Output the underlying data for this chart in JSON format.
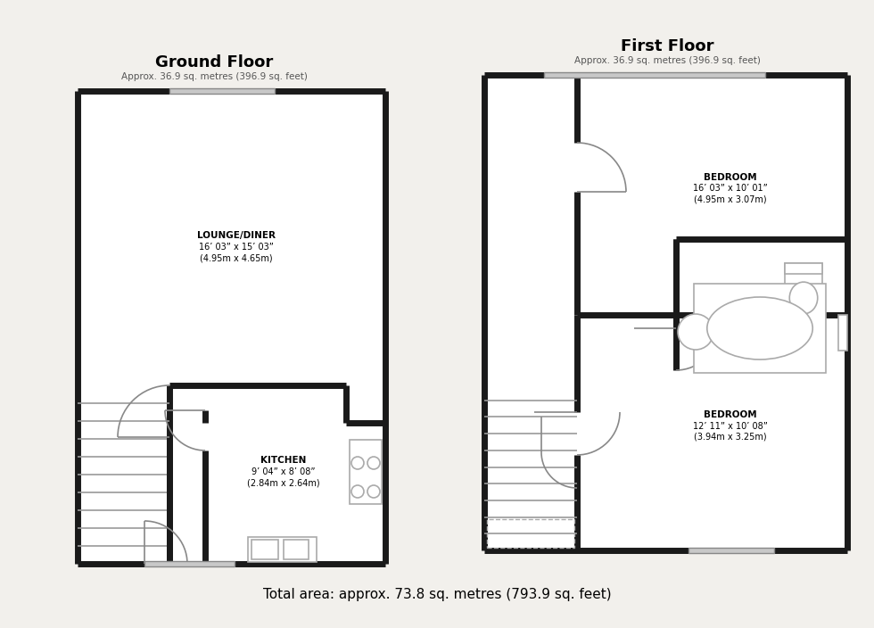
{
  "bg_color": "#f2f0ec",
  "wall_color": "#1a1a1a",
  "wall_lw": 5,
  "thin_lw": 1.2,
  "fix_color": "#aaaaaa",
  "title_ground": "Ground Floor",
  "subtitle_ground": "Approx. 36.9 sq. metres (396.9 sq. feet)",
  "title_first": "First Floor",
  "subtitle_first": "Approx. 36.9 sq. metres (396.9 sq. feet)",
  "footer": "Total area: approx. 73.8 sq. metres (793.9 sq. feet)",
  "lounge_label": "LOUNGE/DINER",
  "lounge_dim": "16’ 03” x 15’ 03”",
  "lounge_metric": "(4.95m x 4.65m)",
  "kitchen_label": "KITCHEN",
  "kitchen_dim": "9’ 04” x 8’ 08”",
  "kitchen_metric": "(2.84m x 2.64m)",
  "bed1_label": "BEDROOM",
  "bed1_dim": "16’ 03” x 10’ 01”",
  "bed1_metric": "(4.95m x 3.07m)",
  "bed2_label": "BEDROOM",
  "bed2_dim": "12’ 11” x 10’ 08”",
  "bed2_metric": "(3.94m x 3.25m)"
}
